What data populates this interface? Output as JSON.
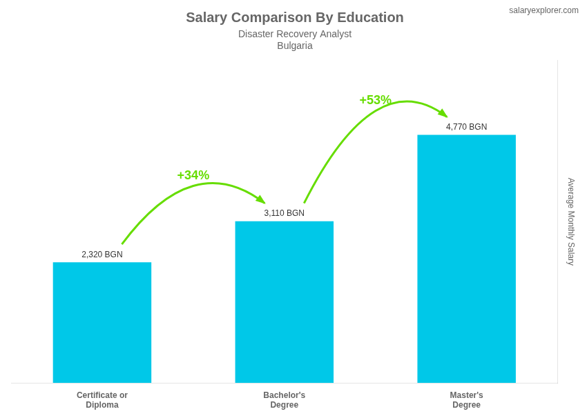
{
  "chart_data": {
    "type": "bar",
    "title": "Salary Comparison By Education",
    "subtitle": [
      "Disaster Recovery Analyst",
      "Bulgaria"
    ],
    "source": "salaryexplorer.com",
    "categories": [
      "Certificate or\nDiploma",
      "Bachelor's\nDegree",
      "Master's\nDegree"
    ],
    "values": [
      2320,
      3110,
      4770
    ],
    "value_labels": [
      "2,320 BGN",
      "3,110 BGN",
      "4,770 BGN"
    ],
    "data_labels": true,
    "color": "#00c8e8",
    "ylabel": "Average Monthly Salary",
    "ylim": [
      0,
      6200
    ],
    "tick_labels": "x",
    "grid": false,
    "annotations": [
      {
        "text": "+34%",
        "color": "#66dd00"
      },
      {
        "text": "+53%",
        "color": "#66dd00"
      }
    ]
  }
}
